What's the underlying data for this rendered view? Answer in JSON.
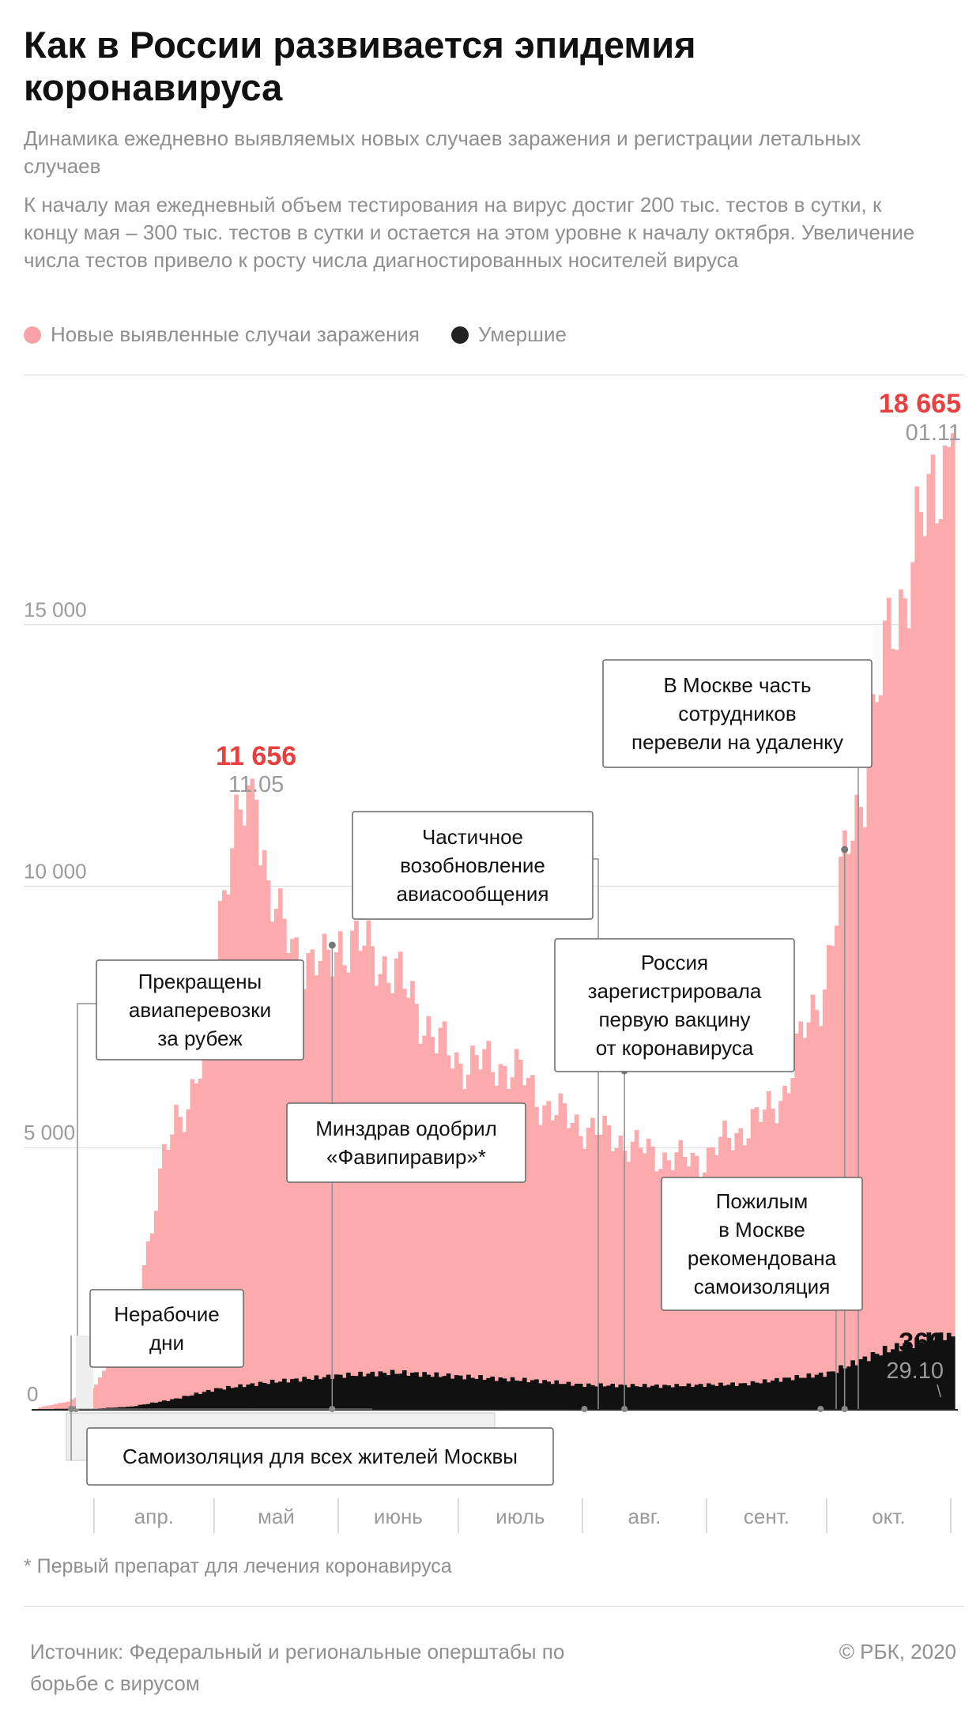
{
  "header": {
    "title": "Как в России развивается эпидемия коронавируса",
    "subtitle": "Динамика ежедневно выявляемых новых случаев заражения и регистрации летальных случаев",
    "description": "К началу мая ежедневный объем тестирования на вирус достиг 200 тыс. тестов в сутки, к концу мая – 300 тыс. тестов в сутки и остается на этом уровне к началу октября. Увеличение числа тестов привело к росту числа диагностированных носителей вируса"
  },
  "legend": [
    {
      "label": "Новые выявленные случаи заражения",
      "color": "#f7a3a6"
    },
    {
      "label": "Умершие",
      "color": "#222222"
    }
  ],
  "colors": {
    "cases": "#fdaaad",
    "deaths": "#111111",
    "highlight": "#e8403f",
    "muted": "#8f8f8f",
    "grid": "#d9d9d9"
  },
  "chart_data": {
    "type": "bar",
    "x_start": "2020-03-18",
    "x_end": "2020-11-01",
    "ylim": [
      0,
      19000
    ],
    "y_ticks": [
      0,
      5000,
      10000,
      15000
    ],
    "y_tick_labels": [
      "0",
      "5 000",
      "10 000",
      "15 000"
    ],
    "months": [
      "апр.",
      "май",
      "июнь",
      "июль",
      "авг.",
      "сент.",
      "окт."
    ],
    "series": [
      {
        "name": "Новые выявленные случаи заражения",
        "color": "#fdaaad",
        "keypoints": [
          [
            "2020-03-18",
            30
          ],
          [
            "2020-03-25",
            150
          ],
          [
            "2020-03-30",
            300
          ],
          [
            "2020-04-01",
            500
          ],
          [
            "2020-04-05",
            950
          ],
          [
            "2020-04-08",
            1450
          ],
          [
            "2020-04-12",
            2500
          ],
          [
            "2020-04-15",
            3450
          ],
          [
            "2020-04-18",
            4750
          ],
          [
            "2020-04-21",
            5650
          ],
          [
            "2020-04-24",
            5850
          ],
          [
            "2020-04-27",
            6400
          ],
          [
            "2020-04-30",
            7100
          ],
          [
            "2020-05-02",
            9600
          ],
          [
            "2020-05-04",
            10600
          ],
          [
            "2020-05-07",
            11200
          ],
          [
            "2020-05-11",
            11656
          ],
          [
            "2020-05-14",
            10100
          ],
          [
            "2020-05-17",
            9200
          ],
          [
            "2020-05-20",
            8850
          ],
          [
            "2020-05-24",
            8600
          ],
          [
            "2020-05-28",
            8400
          ],
          [
            "2020-06-01",
            9000
          ],
          [
            "2020-06-05",
            8850
          ],
          [
            "2020-06-10",
            8700
          ],
          [
            "2020-06-15",
            8250
          ],
          [
            "2020-06-20",
            7750
          ],
          [
            "2020-06-25",
            7000
          ],
          [
            "2020-07-01",
            6650
          ],
          [
            "2020-07-06",
            6600
          ],
          [
            "2020-07-11",
            6600
          ],
          [
            "2020-07-16",
            6400
          ],
          [
            "2020-07-21",
            5900
          ],
          [
            "2020-07-26",
            5600
          ],
          [
            "2020-07-31",
            5450
          ],
          [
            "2020-08-05",
            5250
          ],
          [
            "2020-08-10",
            5150
          ],
          [
            "2020-08-15",
            4950
          ],
          [
            "2020-08-20",
            4850
          ],
          [
            "2020-08-25",
            4750
          ],
          [
            "2020-08-31",
            4800
          ],
          [
            "2020-09-05",
            5100
          ],
          [
            "2020-09-10",
            5400
          ],
          [
            "2020-09-15",
            5600
          ],
          [
            "2020-09-20",
            6100
          ],
          [
            "2020-09-25",
            7200
          ],
          [
            "2020-09-30",
            8200
          ],
          [
            "2020-10-03",
            9400
          ],
          [
            "2020-10-06",
            10900
          ],
          [
            "2020-10-10",
            12100
          ],
          [
            "2020-10-14",
            13800
          ],
          [
            "2020-10-17",
            15200
          ],
          [
            "2020-10-20",
            15700
          ],
          [
            "2020-10-23",
            16400
          ],
          [
            "2020-10-26",
            17300
          ],
          [
            "2020-10-29",
            18300
          ],
          [
            "2020-10-31",
            18200
          ],
          [
            "2020-11-01",
            18665
          ]
        ]
      },
      {
        "name": "Умершие",
        "color": "#111111",
        "keypoints": [
          [
            "2020-03-18",
            0
          ],
          [
            "2020-04-01",
            2
          ],
          [
            "2020-04-10",
            12
          ],
          [
            "2020-04-20",
            45
          ],
          [
            "2020-05-01",
            95
          ],
          [
            "2020-05-15",
            130
          ],
          [
            "2020-06-01",
            160
          ],
          [
            "2020-06-15",
            175
          ],
          [
            "2020-07-01",
            155
          ],
          [
            "2020-07-20",
            135
          ],
          [
            "2020-08-01",
            115
          ],
          [
            "2020-08-20",
            110
          ],
          [
            "2020-09-10",
            120
          ],
          [
            "2020-10-01",
            170
          ],
          [
            "2020-10-15",
            280
          ],
          [
            "2020-10-25",
            330
          ],
          [
            "2020-10-29",
            366
          ],
          [
            "2020-11-01",
            340
          ]
        ]
      }
    ],
    "peaks": [
      {
        "value": "11 656",
        "date_label": "11.05",
        "date": "2020-05-11",
        "cases": 11656
      },
      {
        "value": "18 665",
        "date_label": "01.11",
        "date": "2020-11-01",
        "cases": 18665
      },
      {
        "value": "366",
        "date_label": "29.10",
        "date": "2020-10-29",
        "deaths": 366
      }
    ],
    "annotations": [
      {
        "text": [
          "В Москве часть",
          "сотрудников",
          "перевели на удаленку"
        ],
        "date": "2020-10-05"
      },
      {
        "text": [
          "Частичное",
          "возобновление",
          "авиасообщения"
        ],
        "date": "2020-08-01"
      },
      {
        "text": [
          "Прекращены",
          "авиаперевозки",
          "за рубеж"
        ],
        "date": "2020-03-27"
      },
      {
        "text": [
          "Россия",
          "зарегистрировала",
          "первую вакцину",
          "от коронавируса"
        ],
        "date": "2020-08-11"
      },
      {
        "text": [
          "Минздрав одобрил",
          "«Фавипиравир»*"
        ],
        "date": "2020-05-30"
      },
      {
        "text": [
          "Пожилым",
          "в Москве",
          "рекомендована",
          "самоизоляция"
        ],
        "date": "2020-09-29"
      },
      {
        "text": [
          "Нерабочие",
          "дни"
        ],
        "date": "2020-03-30"
      },
      {
        "text": [
          "Самоизоляция для всех жителей Москвы"
        ],
        "date": "2020-03-30",
        "date_end": "2020-06-09"
      }
    ]
  },
  "footnote": "* Первый препарат для лечения коронавируса",
  "footer": {
    "source": "Источник: Федеральный и региональные оперштабы по борьбе с вирусом",
    "copyright": "© РБК, 2020"
  }
}
